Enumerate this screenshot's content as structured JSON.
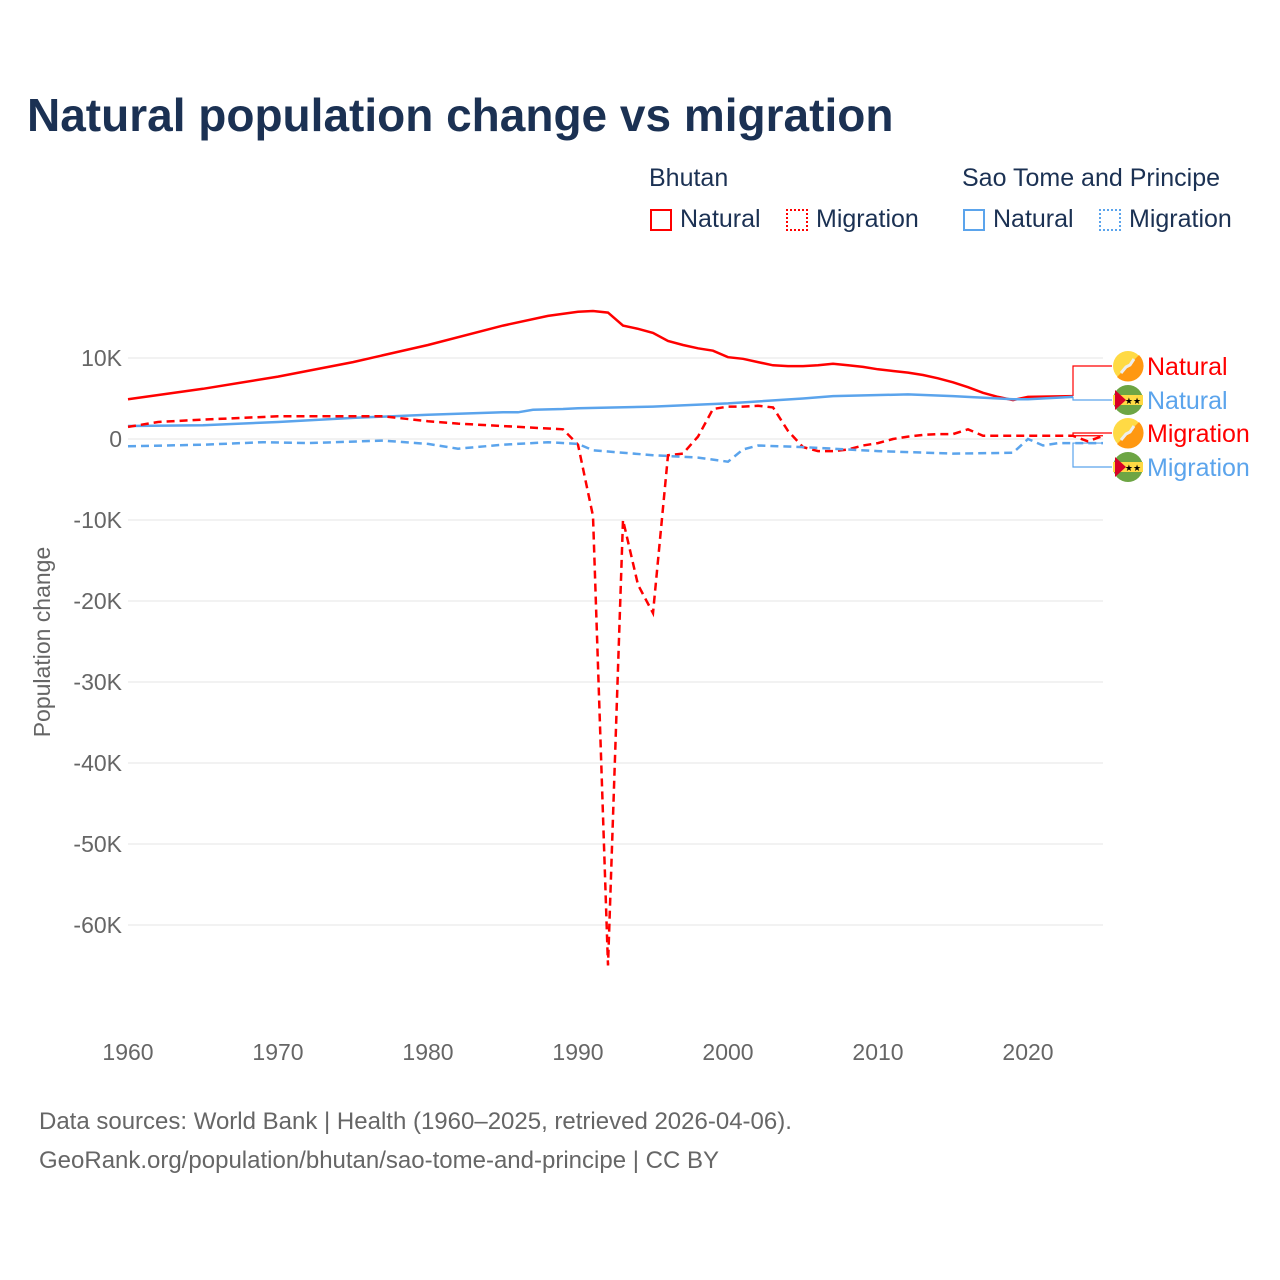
{
  "title": "Natural population change vs migration",
  "legend": {
    "groups": [
      {
        "name": "Bhutan",
        "items": [
          "Natural",
          "Migration"
        ],
        "color": "#ff0000"
      },
      {
        "name": "Sao Tome and Principe",
        "items": [
          "Natural",
          "Migration"
        ],
        "color": "#5ba4ec"
      }
    ]
  },
  "footer": {
    "line1": "Data sources: World Bank | Health (1960–2025, retrieved 2026-04-06).",
    "line2": "GeoRank.org/population/bhutan/sao-tome-and-principe | CC BY"
  },
  "chart_data": {
    "type": "line",
    "title": "Natural population change vs migration",
    "xlabel": "",
    "ylabel": "Population change",
    "xlim": [
      1960,
      2025
    ],
    "ylim": [
      -70000,
      18000
    ],
    "xticks": [
      1960,
      1970,
      1980,
      1990,
      2000,
      2010,
      2020
    ],
    "yticks": [
      {
        "v": 10000,
        "l": "10K"
      },
      {
        "v": 0,
        "l": "0"
      },
      {
        "v": -10000,
        "l": "-10K"
      },
      {
        "v": -20000,
        "l": "-20K"
      },
      {
        "v": -30000,
        "l": "-30K"
      },
      {
        "v": -40000,
        "l": "-40K"
      },
      {
        "v": -50000,
        "l": "-50K"
      },
      {
        "v": -60000,
        "l": "-60K"
      }
    ],
    "grid": true,
    "series": [
      {
        "name": "Bhutan Natural",
        "label": "Natural",
        "color": "#ff0000",
        "dash": false,
        "flag": "bhutan",
        "points": [
          [
            1960,
            4900
          ],
          [
            1965,
            6200
          ],
          [
            1970,
            7700
          ],
          [
            1975,
            9500
          ],
          [
            1980,
            11600
          ],
          [
            1985,
            14000
          ],
          [
            1988,
            15200
          ],
          [
            1990,
            15700
          ],
          [
            1991,
            15800
          ],
          [
            1992,
            15600
          ],
          [
            1993,
            14000
          ],
          [
            1994,
            13600
          ],
          [
            1995,
            13100
          ],
          [
            1996,
            12100
          ],
          [
            1997,
            11600
          ],
          [
            1998,
            11200
          ],
          [
            1999,
            10900
          ],
          [
            2000,
            10100
          ],
          [
            2001,
            9900
          ],
          [
            2002,
            9500
          ],
          [
            2003,
            9100
          ],
          [
            2004,
            9000
          ],
          [
            2005,
            9000
          ],
          [
            2006,
            9100
          ],
          [
            2007,
            9300
          ],
          [
            2008,
            9100
          ],
          [
            2009,
            8900
          ],
          [
            2010,
            8600
          ],
          [
            2011,
            8400
          ],
          [
            2012,
            8200
          ],
          [
            2013,
            7900
          ],
          [
            2014,
            7500
          ],
          [
            2015,
            7000
          ],
          [
            2016,
            6400
          ],
          [
            2017,
            5700
          ],
          [
            2018,
            5200
          ],
          [
            2019,
            4800
          ],
          [
            2020,
            5200
          ],
          [
            2023,
            5300
          ]
        ]
      },
      {
        "name": "Sao Tome and Principe Natural",
        "label": "Natural",
        "color": "#5ba4ec",
        "dash": false,
        "flag": "stp",
        "points": [
          [
            1960,
            1600
          ],
          [
            1965,
            1700
          ],
          [
            1970,
            2100
          ],
          [
            1975,
            2600
          ],
          [
            1980,
            3000
          ],
          [
            1985,
            3300
          ],
          [
            1986,
            3300
          ],
          [
            1987,
            3600
          ],
          [
            1989,
            3700
          ],
          [
            1990,
            3800
          ],
          [
            1995,
            4000
          ],
          [
            2000,
            4400
          ],
          [
            2005,
            5000
          ],
          [
            2007,
            5300
          ],
          [
            2012,
            5500
          ],
          [
            2015,
            5300
          ],
          [
            2019,
            4900
          ],
          [
            2020,
            4900
          ],
          [
            2023,
            5200
          ]
        ]
      },
      {
        "name": "Bhutan Migration",
        "label": "Migration",
        "color": "#ff0000",
        "dash": true,
        "flag": "bhutan",
        "points": [
          [
            1960,
            1500
          ],
          [
            1962,
            2100
          ],
          [
            1965,
            2400
          ],
          [
            1970,
            2800
          ],
          [
            1977,
            2800
          ],
          [
            1980,
            2200
          ],
          [
            1982,
            1900
          ],
          [
            1989,
            1200
          ],
          [
            1990,
            -700
          ],
          [
            1991,
            -9500
          ],
          [
            1992,
            -65000
          ],
          [
            1993,
            -10000
          ],
          [
            1994,
            -18000
          ],
          [
            1995,
            -21500
          ],
          [
            1996,
            -2000
          ],
          [
            1997,
            -1800
          ],
          [
            1998,
            300
          ],
          [
            1999,
            3700
          ],
          [
            2000,
            4000
          ],
          [
            2001,
            4000
          ],
          [
            2002,
            4100
          ],
          [
            2003,
            3900
          ],
          [
            2004,
            1000
          ],
          [
            2005,
            -1000
          ],
          [
            2006,
            -1500
          ],
          [
            2007,
            -1500
          ],
          [
            2008,
            -1300
          ],
          [
            2009,
            -800
          ],
          [
            2010,
            -500
          ],
          [
            2011,
            0
          ],
          [
            2012,
            300
          ],
          [
            2013,
            500
          ],
          [
            2014,
            600
          ],
          [
            2015,
            600
          ],
          [
            2016,
            1200
          ],
          [
            2017,
            400
          ],
          [
            2023,
            400
          ],
          [
            2024,
            -300
          ],
          [
            2025,
            400
          ]
        ]
      },
      {
        "name": "Sao Tome and Principe Migration",
        "label": "Migration",
        "color": "#5ba4ec",
        "dash": true,
        "flag": "stp",
        "points": [
          [
            1960,
            -900
          ],
          [
            1965,
            -700
          ],
          [
            1969,
            -400
          ],
          [
            1972,
            -500
          ],
          [
            1977,
            -200
          ],
          [
            1980,
            -600
          ],
          [
            1982,
            -1200
          ],
          [
            1985,
            -700
          ],
          [
            1988,
            -400
          ],
          [
            1990,
            -600
          ],
          [
            1991,
            -1400
          ],
          [
            1995,
            -2000
          ],
          [
            1998,
            -2300
          ],
          [
            2000,
            -2800
          ],
          [
            2001,
            -1300
          ],
          [
            2002,
            -800
          ],
          [
            2005,
            -1000
          ],
          [
            2010,
            -1500
          ],
          [
            2015,
            -1800
          ],
          [
            2019,
            -1700
          ],
          [
            2020,
            0
          ],
          [
            2021,
            -800
          ],
          [
            2022,
            -500
          ],
          [
            2025,
            -500
          ]
        ]
      }
    ]
  }
}
